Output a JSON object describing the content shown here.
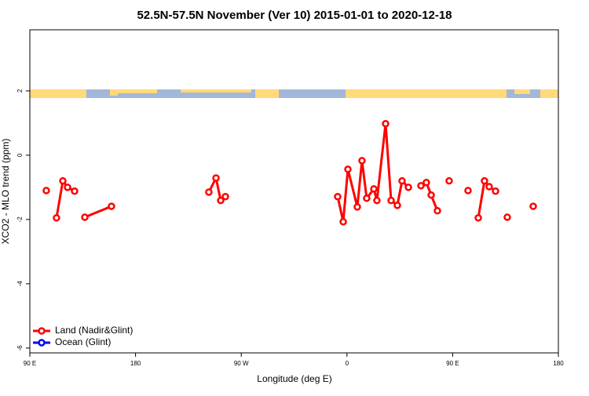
{
  "chart_data": {
    "type": "line",
    "title": "52.5N-57.5N November (Ver 10)   2015-01-01 to 2020-12-18",
    "xlabel": "Longitude (deg E)",
    "ylabel": "XCO2 - MLO trend (ppm)",
    "xlim": [
      90,
      540
    ],
    "ylim": [
      -6.15,
      3.9
    ],
    "xticks": [
      {
        "value": 90,
        "label": "90 E"
      },
      180,
      {
        "value": 270,
        "label": "90 W"
      },
      {
        "value": 360,
        "label": "0"
      },
      {
        "value": 450,
        "label": "90 E"
      },
      {
        "value": 540,
        "label": "180"
      }
    ],
    "yticks": [
      -6,
      -4,
      -2,
      0,
      2
    ],
    "legend": "bottom-left",
    "series": [
      {
        "name": "Land (Nadir&Glint)",
        "color": "#ff0000",
        "x": [
          104.0,
          null,
          112.7,
          118.1,
          122.1,
          128.1,
          null,
          136.8,
          159.5,
          null,
          242.4,
          248.5,
          252.5,
          256.5,
          null,
          352.1,
          356.8,
          360.8,
          368.8,
          372.8,
          376.8,
          382.9,
          385.5,
          392.9,
          397.6,
          402.9,
          406.9,
          412.3,
          null,
          423.0,
          427.6,
          431.7,
          437.0,
          null,
          447.0,
          null,
          463.1,
          null,
          471.8,
          477.1,
          481.1,
          486.5,
          null,
          496.5,
          null,
          518.6
        ],
        "values": [
          -1.1,
          null,
          -1.95,
          -0.8,
          -1.0,
          -1.12,
          null,
          -1.93,
          -1.59,
          null,
          -1.15,
          -0.71,
          -1.41,
          -1.29,
          null,
          -1.29,
          -2.07,
          -0.44,
          -1.61,
          -0.17,
          -1.34,
          -1.05,
          -1.41,
          0.98,
          -1.41,
          -1.56,
          -0.8,
          -1.0,
          null,
          -0.95,
          -0.85,
          -1.24,
          -1.73,
          null,
          -0.8,
          null,
          -1.1,
          null,
          -1.95,
          -0.8,
          -0.98,
          -1.12,
          null,
          -1.93,
          null,
          -1.59
        ]
      },
      {
        "name": "Ocean (Glint)",
        "color": "#0000ff",
        "x": [],
        "values": []
      }
    ]
  }
}
